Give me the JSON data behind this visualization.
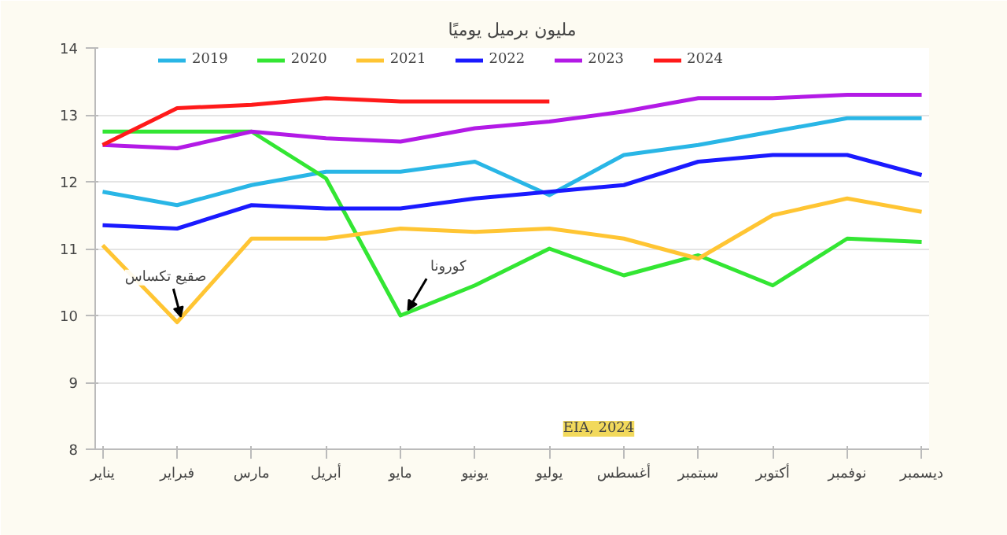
{
  "chart_data": {
    "type": "line",
    "title": "مليون برميل يوميًا",
    "categories": [
      "يناير",
      "فبراير",
      "مارس",
      "أبريل",
      "مايو",
      "يونيو",
      "يوليو",
      "أغسطس",
      "سبتمبر",
      "أكتوبر",
      "نوفمبر",
      "ديسمبر"
    ],
    "series": [
      {
        "name": "2019",
        "color": "#29b6e6",
        "values": [
          11.85,
          11.65,
          11.95,
          12.15,
          12.15,
          12.3,
          11.8,
          12.4,
          12.55,
          12.75,
          12.95,
          12.95
        ]
      },
      {
        "name": "2020",
        "color": "#33e633",
        "values": [
          12.75,
          12.75,
          12.75,
          12.05,
          10.0,
          10.45,
          11.0,
          10.6,
          10.9,
          10.45,
          11.15,
          11.1
        ]
      },
      {
        "name": "2021",
        "color": "#ffc533",
        "values": [
          11.05,
          9.9,
          11.15,
          11.15,
          11.3,
          11.25,
          11.3,
          11.15,
          10.85,
          11.5,
          11.75,
          11.55
        ]
      },
      {
        "name": "2022",
        "color": "#1a1aff",
        "values": [
          11.35,
          11.3,
          11.65,
          11.6,
          11.6,
          11.75,
          11.85,
          11.95,
          12.3,
          12.4,
          12.4,
          12.1
        ]
      },
      {
        "name": "2023",
        "color": "#b31ae6",
        "values": [
          12.55,
          12.5,
          12.75,
          12.65,
          12.6,
          12.8,
          12.9,
          13.05,
          13.25,
          13.25,
          13.3,
          13.3
        ]
      },
      {
        "name": "2024",
        "color": "#ff1a1a",
        "values": [
          12.55,
          13.1,
          13.15,
          13.25,
          13.2,
          13.2,
          13.2,
          null,
          null,
          null,
          null,
          null
        ]
      }
    ],
    "ylim": [
      8,
      14
    ],
    "yticks": [
      8,
      9,
      10,
      11,
      12,
      13,
      14
    ],
    "grid": "y",
    "legend": "top",
    "annotations": [
      {
        "text": "صقيع تكساس",
        "x": "فبراير",
        "y": 9.9
      },
      {
        "text": "كورونا",
        "x": "مايو",
        "y": 10.0
      },
      "EIA, 2024"
    ]
  }
}
